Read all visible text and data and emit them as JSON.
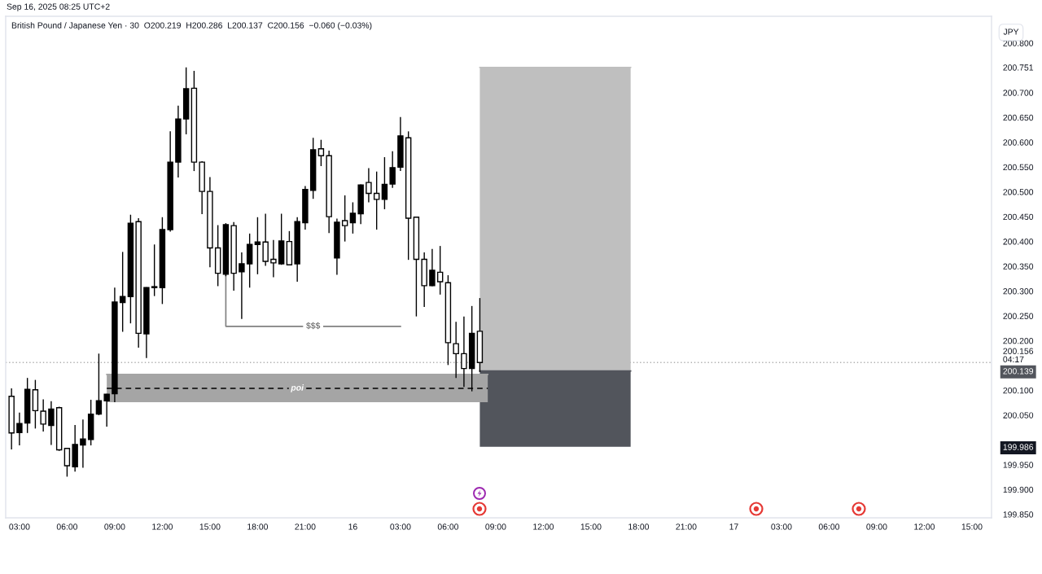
{
  "chart_data": {
    "type": "candlestick",
    "title": "British Pound / Japanese Yen · 30  O200.219  H200.286  L200.137  C200.156  −0.060 (−0.03%)",
    "ylabel": "JPY",
    "annotations": [
      "Sep 16, 2025 08:25 UTC+2",
      {
        "text": "$$$",
        "x": "2025-09-15T21:30",
        "y": 200.229
      },
      {
        "text": "poi",
        "x": "2025-09-15T20:30",
        "y": 200.104
      }
    ],
    "x": [
      "2025-09-15T02:30",
      "2025-09-15T03:00",
      "2025-09-15T03:30",
      "2025-09-15T04:00",
      "2025-09-15T04:30",
      "2025-09-15T05:00",
      "2025-09-15T05:30",
      "2025-09-15T06:00",
      "2025-09-15T06:30",
      "2025-09-15T07:00",
      "2025-09-15T07:30",
      "2025-09-15T08:00",
      "2025-09-15T08:30",
      "2025-09-15T09:00",
      "2025-09-15T09:30",
      "2025-09-15T10:00",
      "2025-09-15T10:30",
      "2025-09-15T11:00",
      "2025-09-15T11:30",
      "2025-09-15T12:00",
      "2025-09-15T12:30",
      "2025-09-15T13:00",
      "2025-09-15T13:30",
      "2025-09-15T14:00",
      "2025-09-15T14:30",
      "2025-09-15T15:00",
      "2025-09-15T15:30",
      "2025-09-15T16:00",
      "2025-09-15T16:30",
      "2025-09-15T17:00",
      "2025-09-15T17:30",
      "2025-09-15T18:00",
      "2025-09-15T18:30",
      "2025-09-15T19:00",
      "2025-09-15T19:30",
      "2025-09-15T20:00",
      "2025-09-15T20:30",
      "2025-09-15T21:00",
      "2025-09-15T21:30",
      "2025-09-15T22:00",
      "2025-09-15T22:30",
      "2025-09-15T23:00",
      "2025-09-15T23:30",
      "2025-09-16T00:00",
      "2025-09-16T00:30",
      "2025-09-16T01:00",
      "2025-09-16T01:30",
      "2025-09-16T02:00",
      "2025-09-16T02:30",
      "2025-09-16T03:00",
      "2025-09-16T03:30",
      "2025-09-16T04:00",
      "2025-09-16T04:30",
      "2025-09-16T05:00",
      "2025-09-16T05:30",
      "2025-09-16T06:00",
      "2025-09-16T06:30",
      "2025-09-16T07:00",
      "2025-09-16T07:30",
      "2025-09-16T08:00"
    ],
    "ohlc": [
      [
        200.088,
        200.104,
        199.981,
        200.014
      ],
      [
        200.015,
        200.055,
        199.989,
        200.033
      ],
      [
        200.034,
        200.125,
        200.014,
        200.102
      ],
      [
        200.101,
        200.121,
        200.023,
        200.059
      ],
      [
        200.058,
        200.082,
        200.017,
        200.032
      ],
      [
        200.029,
        200.078,
        199.99,
        200.062
      ],
      [
        200.065,
        200.067,
        199.978,
        199.98
      ],
      [
        199.983,
        199.984,
        199.926,
        199.948
      ],
      [
        199.946,
        200.03,
        199.936,
        199.991
      ],
      [
        199.99,
        200.041,
        199.944,
        200.002
      ],
      [
        200.001,
        200.081,
        199.989,
        200.052
      ],
      [
        200.052,
        200.174,
        200.05,
        200.079
      ],
      [
        200.079,
        200.093,
        200.027,
        200.092
      ],
      [
        200.093,
        200.307,
        200.076,
        200.278
      ],
      [
        200.277,
        200.379,
        200.218,
        200.289
      ],
      [
        200.289,
        200.454,
        200.235,
        200.437
      ],
      [
        200.44,
        200.447,
        200.186,
        200.215
      ],
      [
        200.214,
        200.308,
        200.165,
        200.307
      ],
      [
        200.307,
        200.394,
        200.29,
        200.309
      ],
      [
        200.307,
        200.449,
        200.274,
        200.424
      ],
      [
        200.424,
        200.622,
        200.42,
        200.56
      ],
      [
        200.56,
        200.674,
        200.529,
        200.647
      ],
      [
        200.647,
        200.751,
        200.616,
        200.708
      ],
      [
        200.709,
        200.744,
        200.542,
        200.56
      ],
      [
        200.56,
        200.562,
        200.455,
        200.501
      ],
      [
        200.501,
        200.53,
        200.348,
        200.387
      ],
      [
        200.387,
        200.433,
        200.31,
        200.336
      ],
      [
        200.334,
        200.437,
        200.33,
        200.434
      ],
      [
        200.432,
        200.439,
        200.301,
        200.336
      ],
      [
        200.339,
        200.378,
        200.244,
        200.355
      ],
      [
        200.355,
        200.416,
        200.307,
        200.394
      ],
      [
        200.394,
        200.449,
        200.334,
        200.399
      ],
      [
        200.399,
        200.456,
        200.351,
        200.36
      ],
      [
        200.364,
        200.403,
        200.328,
        200.357
      ],
      [
        200.355,
        200.456,
        200.353,
        200.401
      ],
      [
        200.4,
        200.421,
        200.352,
        200.353
      ],
      [
        200.355,
        200.449,
        200.319,
        200.44
      ],
      [
        200.438,
        200.512,
        200.424,
        200.505
      ],
      [
        200.503,
        200.609,
        200.486,
        200.585
      ],
      [
        200.587,
        200.605,
        200.552,
        200.573
      ],
      [
        200.573,
        200.583,
        200.417,
        200.45
      ],
      [
        200.367,
        200.446,
        200.333,
        200.439
      ],
      [
        200.442,
        200.493,
        200.4,
        200.432
      ],
      [
        200.438,
        200.479,
        200.416,
        200.457
      ],
      [
        200.456,
        200.515,
        200.435,
        200.514
      ],
      [
        200.519,
        200.548,
        200.479,
        200.497
      ],
      [
        200.497,
        200.541,
        200.424,
        200.485
      ],
      [
        200.485,
        200.57,
        200.465,
        200.515
      ],
      [
        200.516,
        200.582,
        200.508,
        200.549
      ],
      [
        200.55,
        200.651,
        200.542,
        200.613
      ],
      [
        200.609,
        200.622,
        200.363,
        200.447
      ],
      [
        200.449,
        200.45,
        200.249,
        200.364
      ],
      [
        200.364,
        200.378,
        200.268,
        200.311
      ],
      [
        200.311,
        200.385,
        200.31,
        200.342
      ],
      [
        200.338,
        200.391,
        200.293,
        200.319
      ],
      [
        200.317,
        200.332,
        200.151,
        200.196
      ],
      [
        200.194,
        200.238,
        200.125,
        200.174
      ],
      [
        200.174,
        200.249,
        200.107,
        200.144
      ],
      [
        200.144,
        200.27,
        200.098,
        200.215
      ],
      [
        200.219,
        200.286,
        200.137,
        200.156
      ]
    ],
    "colors": [
      "#ffffff",
      "#000000",
      "#000000",
      "#ffffff",
      "#ffffff",
      "#000000",
      "#ffffff",
      "#ffffff",
      "#000000",
      "#000000",
      "#000000",
      "#000000",
      "#000000",
      "#000000",
      "#000000",
      "#000000",
      "#ffffff",
      "#000000",
      "#000000",
      "#000000",
      "#000000",
      "#000000",
      "#000000",
      "#ffffff",
      "#ffffff",
      "#ffffff",
      "#ffffff",
      "#000000",
      "#ffffff",
      "#000000",
      "#000000",
      "#000000",
      "#ffffff",
      "#ffffff",
      "#000000",
      "#ffffff",
      "#000000",
      "#000000",
      "#000000",
      "#ffffff",
      "#ffffff",
      "#000000",
      "#ffffff",
      "#000000",
      "#000000",
      "#ffffff",
      "#ffffff",
      "#000000",
      "#000000",
      "#000000",
      "#ffffff",
      "#ffffff",
      "#ffffff",
      "#000000",
      "#ffffff",
      "#ffffff",
      "#ffffff",
      "#ffffff",
      "#000000",
      "#ffffff"
    ],
    "series": [
      {
        "type": "line",
        "x": [
          "2025-09-16T08:00",
          "2025-09-16T17:30"
        ],
        "values": [
          200.751,
          200.751
        ],
        "lower": [
          200.139,
          200.139
        ],
        "upper": [
          200.751,
          200.751
        ],
        "color": "#bfbfbf"
      },
      {
        "type": "line",
        "x": [
          "2025-09-16T08:00",
          "2025-09-16T17:30"
        ],
        "values": [
          200.139,
          200.139
        ],
        "lower": [
          199.986,
          199.986
        ],
        "upper": [
          200.139,
          200.139
        ],
        "color": "#52555c"
      },
      {
        "type": "line",
        "x": [
          "2025-09-15T08:30",
          "2025-09-16T08:30"
        ],
        "values": [
          200.132,
          200.132
        ],
        "lower": [
          200.076,
          200.076
        ],
        "upper": [
          200.132,
          200.132
        ],
        "color": "#a5a5a5"
      },
      {
        "type": "line",
        "x": [
          "2025-09-15T08:30",
          "2025-09-16T08:30"
        ],
        "values": [
          200.104,
          200.104
        ],
        "color": "#000000",
        "line_style": "dashed"
      },
      {
        "type": "line",
        "x": [
          "2025-09-15T16:00",
          "2025-09-15T16:00",
          "2025-09-16T03:00"
        ],
        "values": [
          200.334,
          200.229,
          200.229
        ],
        "color": "#808080"
      }
    ],
    "ref_lines": [
      {
        "axis": "y",
        "value": 200.156,
        "label": "200.156\n04:17",
        "color": "#b0b0b0",
        "line_style": "dotted"
      }
    ],
    "xlim": [
      "2025-09-15T02:08",
      "2025-09-17T16:14"
    ],
    "xticks": [
      {
        "value": "2025-09-15T03:00",
        "label": "03:00"
      },
      {
        "value": "2025-09-15T06:00",
        "label": "06:00"
      },
      {
        "value": "2025-09-15T09:00",
        "label": "09:00"
      },
      {
        "value": "2025-09-15T12:00",
        "label": "12:00"
      },
      {
        "value": "2025-09-15T15:00",
        "label": "15:00"
      },
      {
        "value": "2025-09-15T18:00",
        "label": "18:00"
      },
      {
        "value": "2025-09-15T21:00",
        "label": "21:00"
      },
      {
        "value": "2025-09-16T00:00",
        "label": "16"
      },
      {
        "value": "2025-09-16T03:00",
        "label": "03:00"
      },
      {
        "value": "2025-09-16T06:00",
        "label": "06:00"
      },
      {
        "value": "2025-09-16T09:00",
        "label": "09:00"
      },
      {
        "value": "2025-09-16T12:00",
        "label": "12:00"
      },
      {
        "value": "2025-09-16T15:00",
        "label": "15:00"
      },
      {
        "value": "2025-09-16T18:00",
        "label": "18:00"
      },
      {
        "value": "2025-09-16T21:00",
        "label": "21:00"
      },
      {
        "value": "2025-09-17T00:00",
        "label": "17"
      },
      {
        "value": "2025-09-17T03:00",
        "label": "03:00"
      },
      {
        "value": "2025-09-17T06:00",
        "label": "06:00"
      },
      {
        "value": "2025-09-17T09:00",
        "label": "09:00"
      },
      {
        "value": "2025-09-17T12:00",
        "label": "12:00"
      },
      {
        "value": "2025-09-17T15:00",
        "label": "15:00"
      }
    ],
    "ylim": [
      199.843,
      200.854
    ],
    "yticks": [
      {
        "value": 199.85,
        "label": "199.850"
      },
      {
        "value": 199.9,
        "label": "199.900"
      },
      {
        "value": 199.95,
        "label": "199.950"
      },
      199.986,
      {
        "value": 200.05,
        "label": "200.050"
      },
      {
        "value": 200.1,
        "label": "200.100"
      },
      200.139,
      {
        "value": 200.2,
        "label": "200.200"
      },
      {
        "value": 200.25,
        "label": "200.250"
      },
      {
        "value": 200.3,
        "label": "200.300"
      },
      {
        "value": 200.35,
        "label": "200.350"
      },
      {
        "value": 200.4,
        "label": "200.400"
      },
      {
        "value": 200.45,
        "label": "200.450"
      },
      {
        "value": 200.5,
        "label": "200.500"
      },
      {
        "value": 200.55,
        "label": "200.550"
      },
      {
        "value": 200.6,
        "label": "200.600"
      },
      {
        "value": 200.65,
        "label": "200.650"
      },
      {
        "value": 200.7,
        "label": "200.700"
      },
      200.751,
      {
        "value": 200.8,
        "label": "200.800"
      }
    ]
  }
}
